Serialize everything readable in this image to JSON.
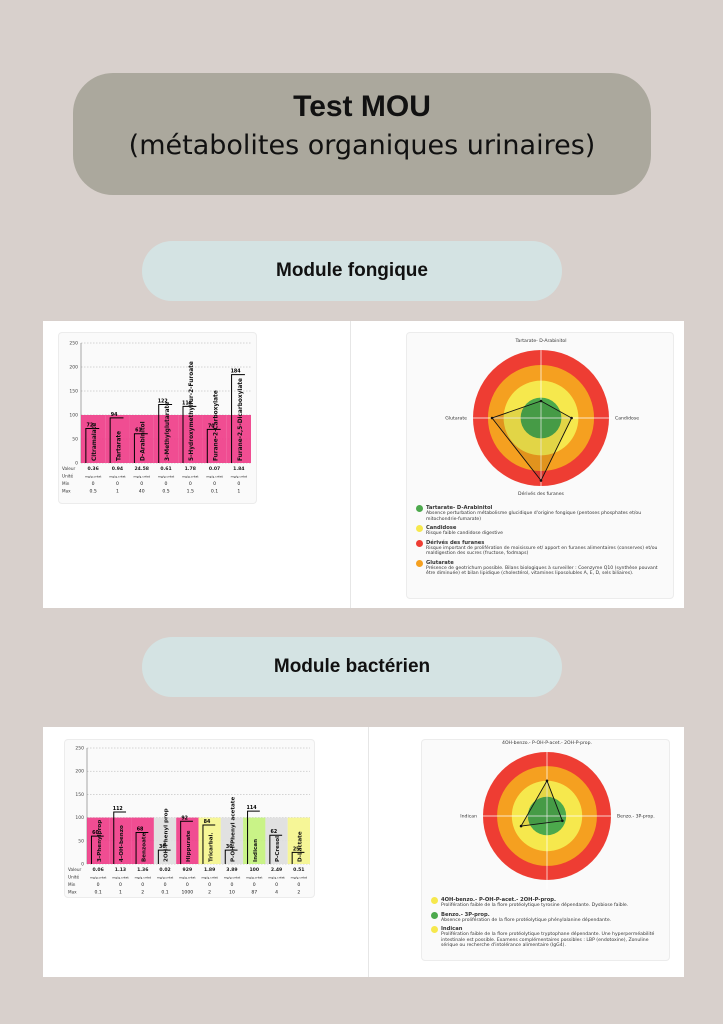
{
  "header": {
    "title": "Test MOU",
    "subtitle": "(métabolites organiques urinaires)"
  },
  "sections": {
    "fungal": {
      "label": "Module fongique"
    },
    "bacterial": {
      "label": "Module bactérien"
    }
  },
  "colors": {
    "pink": "#ee3a86",
    "pink_light": "#f28fb6",
    "grey_bar": "#dedede",
    "green_bar": "#c3f27a",
    "yellow_bar": "#f5f58c",
    "ring_red": "#ee3d33",
    "ring_orange": "#f5a020",
    "ring_yellow": "#f6e84d",
    "ring_green": "#4ca94c"
  },
  "chart_data": [
    {
      "type": "bar",
      "title": "",
      "ylim": [
        0,
        250
      ],
      "yticks": [
        "0",
        "50",
        "100",
        "150",
        "200",
        "250"
      ],
      "grid": true,
      "categories": [
        "Citramalate",
        "Tartarate",
        "D-Arabinitol",
        "3-Methylglutarate",
        "5-Hydroxymethylfur-2-Furoate",
        "Furane-2-Carboxylate",
        "Furane-2,5-Dicarboxylate"
      ],
      "values": [
        72,
        94,
        61,
        122,
        118,
        70,
        184
      ],
      "row_labels": {
        "value": "Valeur",
        "unit": "Unité",
        "min": "Min",
        "max": "Max"
      },
      "raw_values": [
        "0.36",
        "0.94",
        "24.58",
        "0.61",
        "1.78",
        "0.07",
        "1.84"
      ],
      "units": [
        "mg/g.créat",
        "mg/g.créat",
        "mg/g.créat",
        "mg/g.créat",
        "mg/g.créat",
        "mg/g.créat",
        "mg/g.créat"
      ],
      "mins": [
        "0",
        "0",
        "0",
        "0",
        "0",
        "0",
        "0"
      ],
      "maxs": [
        "0.5",
        "1",
        "40",
        "0.5",
        "1.5",
        "0.1",
        "1"
      ]
    },
    {
      "type": "bar",
      "title": "",
      "ylim": [
        0,
        250
      ],
      "yticks": [
        "0",
        "50",
        "100",
        "150",
        "200",
        "250"
      ],
      "grid": true,
      "categories": [
        "3-Phenylprop",
        "4-OH-benzo",
        "Benzoate",
        "2OH-Phenyl prop",
        "Hippurate",
        "Tricarbal.",
        "P-OH-Phenyl acetate",
        "Indican",
        "P-Cresol",
        "D-Lactate"
      ],
      "values": [
        60,
        112,
        68,
        30,
        92,
        84,
        30,
        114,
        62,
        25
      ],
      "bar_colors": [
        "pink",
        "pink",
        "pink",
        "grey_bar",
        "pink",
        "yellow_bar",
        "grey_bar",
        "green_bar",
        "grey_bar",
        "yellow_bar"
      ],
      "row_labels": {
        "value": "Valeur",
        "unit": "Unité",
        "min": "Min",
        "max": "Max"
      },
      "raw_values": [
        "0.06",
        "1.13",
        "1.36",
        "0.02",
        "929",
        "1.89",
        "3.89",
        "100",
        "2.49",
        "0.51"
      ],
      "units": [
        "mg/g.créat",
        "mg/g.créat",
        "mg/g.créat",
        "mg/g.créat",
        "mg/g.créat",
        "mg/g.créat",
        "mg/g.créat",
        "mg/g.créat",
        "mg/g.créat",
        "mg/g.créat"
      ],
      "mins": [
        "0",
        "0",
        "0",
        "0",
        "0",
        "0",
        "0",
        "0",
        "0",
        "0"
      ],
      "maxs": [
        "0.1",
        "1",
        "2",
        "0.1",
        "1000",
        "2",
        "10",
        "87",
        "4",
        "2"
      ]
    }
  ],
  "radars": {
    "fungal": {
      "axes": {
        "top": "Tartarate- D-Arabinitol",
        "right": "Candidose",
        "bottom": "Dérivés des furanes",
        "left": "Glutarate"
      },
      "levels": [
        0.25,
        0.45,
        0.92,
        0.72
      ],
      "legend": [
        {
          "color": "ring_green",
          "title": "Tartarate- D-Arabinitol",
          "text": "Absence perturbation métabolisme glucidique d'origine fongique (pentoses phosphates et/ou mitochondrie-fumarate)"
        },
        {
          "color": "ring_yellow",
          "title": "Candidose",
          "text": "Risque faible candidose digestive"
        },
        {
          "color": "ring_red",
          "title": "Dérivés des furanes",
          "text": "Risque important de prolifération de moisissure et/ apport en furanes alimentaires (conserves) et/ou maldigestion des sucres (fructose, fodmaps)"
        },
        {
          "color": "ring_orange",
          "title": "Glutarate",
          "text": "Présence de geotrichum possible. Bilans biologiques à surveiller : Coenzyme Q10 (synthèse pouvant être diminuée) et bilan lipidique (cholestérol, vitamines liposolubles A, E, D, sels biliaires)."
        }
      ]
    },
    "bacterial": {
      "axes": {
        "top": "4OH-benzo.- P-OH-P-acet.- 2OH-P-prop.",
        "right": "Benzo.- 3P-prop.",
        "left": "Indican"
      },
      "levels": [
        0.55,
        0.25,
        0.45
      ],
      "legend": [
        {
          "color": "ring_yellow",
          "title": "4OH-benzo.- P-OH-P-acet.- 2OH-P-prop.",
          "text": "Prolifération faible de la flore protéolytique tyrosine dépendante. Dysbiose faible."
        },
        {
          "color": "ring_green",
          "title": "Benzo.- 3P-prop.",
          "text": "Absence prolifération de la flore protéolytique phénylalanine dépendante."
        },
        {
          "color": "ring_yellow",
          "title": "Indican",
          "text": "Prolifération faible de la flore protéolytique tryptophane dépendante. Une hyperperméabilité intestinale est possible. Examens complémentaires possibles : LBP (endotoxine), Zonuline sérique ou recherche d'intolérance alimentaire (IgG4)."
        }
      ]
    }
  }
}
